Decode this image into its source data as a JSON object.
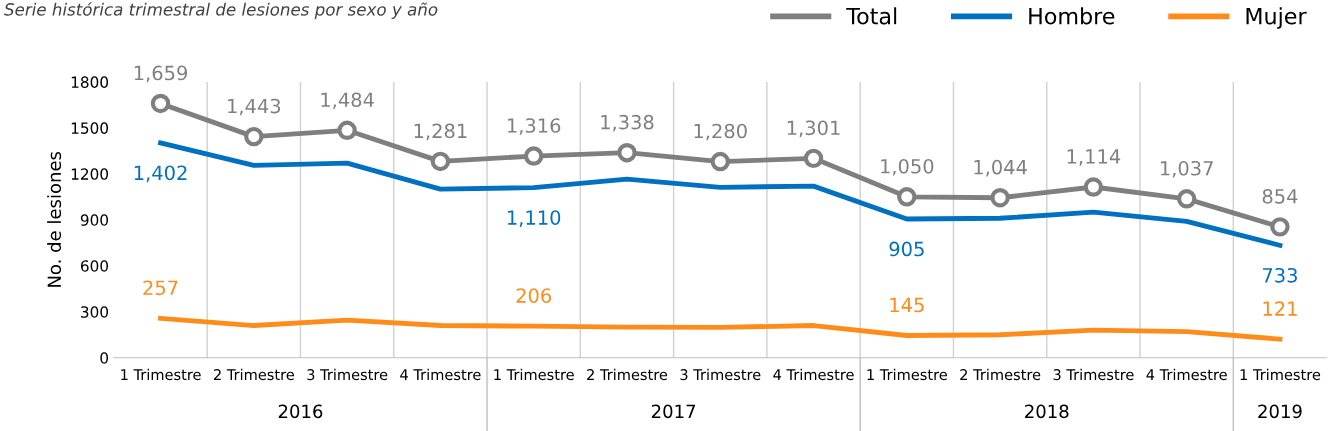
{
  "chart_data": {
    "type": "line",
    "title": "Serie histórica trimestral de lesiones por sexo y año",
    "ylabel": "No. de lesiones",
    "categories": [
      "1 Trimestre",
      "2 Trimestre",
      "3 Trimestre",
      "4 Trimestre",
      "1 Trimestre",
      "2 Trimestre",
      "3 Trimestre",
      "4 Trimestre",
      "1 Trimestre",
      "2 Trimestre",
      "3 Trimestre",
      "4 Trimestre",
      "1 Trimestre"
    ],
    "series": [
      {
        "name": "Total",
        "color": "#7f7f7f",
        "marker": "circle",
        "values": [
          1659,
          1443,
          1484,
          1281,
          1316,
          1338,
          1280,
          1301,
          1050,
          1044,
          1114,
          1037,
          854
        ],
        "value_labels": [
          "1,659",
          "1,443",
          "1,484",
          "1,281",
          "1,316",
          "1,338",
          "1,280",
          "1,301",
          "1,050",
          "1,044",
          "1,114",
          "1,037",
          "854"
        ]
      },
      {
        "name": "Hombre",
        "color": "#0070c0",
        "values": [
          1402,
          1255,
          1270,
          1100,
          1110,
          1165,
          1112,
          1120,
          905,
          910,
          950,
          890,
          733
        ],
        "value_labels": [
          "1,402",
          null,
          null,
          null,
          "1,110",
          null,
          null,
          null,
          "905",
          null,
          null,
          null,
          "733"
        ]
      },
      {
        "name": "Mujer",
        "color": "#ff8c1a",
        "values": [
          257,
          210,
          245,
          210,
          206,
          200,
          198,
          210,
          145,
          150,
          180,
          170,
          121
        ],
        "value_labels": [
          "257",
          null,
          null,
          null,
          "206",
          null,
          null,
          null,
          "145",
          null,
          null,
          null,
          "121"
        ]
      }
    ],
    "annotations": [
      "2016",
      "2017",
      "2018",
      "2019"
    ],
    "ylim": [
      0,
      1800
    ],
    "yticks": [
      0,
      300,
      600,
      900,
      1200,
      1500,
      1800
    ],
    "grid": "x",
    "legend": "top right"
  }
}
